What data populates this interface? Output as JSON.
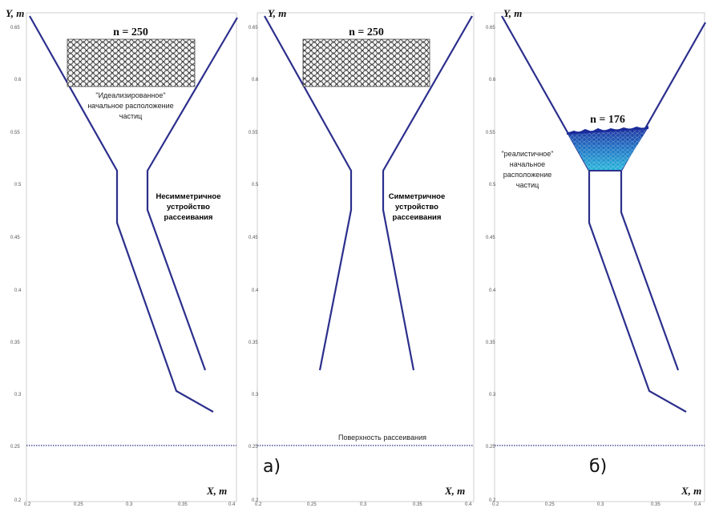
{
  "panels": [
    {
      "y_label": "Y, m",
      "x_label": "X, m",
      "n_label": "n = 250",
      "y_ticks": [
        "0.65",
        "0.6",
        "0.55",
        "0.5",
        "0.45",
        "0.4",
        "0.35",
        "0.3",
        "0.25",
        "0.2"
      ],
      "x_ticks": [
        "0.2",
        "0.25",
        "0.3",
        "0.35",
        "0.4"
      ],
      "note_lines": [
        "\"Идеализированное\"",
        "начальное расположение",
        "частиц"
      ],
      "bold_lines": [
        "Несимметричное",
        "устройство",
        "рассеивания"
      ],
      "letter": "",
      "surface_label": ""
    },
    {
      "y_label": "Y, m",
      "x_label": "X, m",
      "n_label": "n = 250",
      "y_ticks": [
        "0.65",
        "0.6",
        "0.55",
        "0.5",
        "0.45",
        "0.4",
        "0.35",
        "0.3",
        "0.25",
        "0.2"
      ],
      "x_ticks": [
        "0.2",
        "0.25",
        "0.3",
        "0.35",
        "0.4"
      ],
      "note_lines": [],
      "bold_lines": [
        "Симметричное",
        "устройство",
        "рассеивания"
      ],
      "letter": "а)",
      "surface_label": "Поверхность рассеивания"
    },
    {
      "y_label": "Y, m",
      "x_label": "X, m",
      "n_label": "n = 176",
      "y_ticks": [
        "0.65",
        "0.6",
        "0.55",
        "0.5",
        "0.45",
        "0.4",
        "0.35",
        "0.3",
        "0.25",
        "0.2"
      ],
      "x_ticks": [
        "0.2",
        "0.25",
        "0.3",
        "0.35",
        "0.4"
      ],
      "note_lines": [
        "\"реалистичное\"",
        "начальное",
        "расположение",
        "частиц"
      ],
      "bold_lines": [],
      "letter": "б)",
      "surface_label": ""
    }
  ],
  "colors": {
    "funnel": "#2b2f8c",
    "surface": "#2b2f8c",
    "particles_ideal": "#555555",
    "particles_real_top": "#1a2a9a",
    "particles_real_bottom": "#25b3d8"
  }
}
